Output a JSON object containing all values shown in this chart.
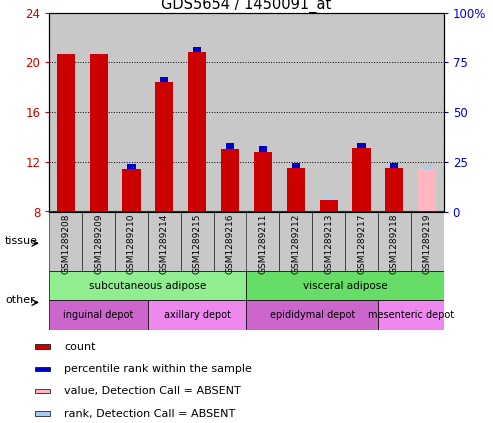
{
  "title": "GDS5654 / 1450091_at",
  "samples": [
    "GSM1289208",
    "GSM1289209",
    "GSM1289210",
    "GSM1289214",
    "GSM1289215",
    "GSM1289216",
    "GSM1289211",
    "GSM1289212",
    "GSM1289213",
    "GSM1289217",
    "GSM1289218",
    "GSM1289219"
  ],
  "red_tops": [
    20.7,
    20.7,
    11.4,
    18.4,
    20.8,
    13.0,
    12.8,
    11.5,
    8.9,
    13.1,
    11.5,
    0.0
  ],
  "blue_extra": [
    0.0,
    0.0,
    0.4,
    0.4,
    0.4,
    0.5,
    0.5,
    0.4,
    0.0,
    0.4,
    0.4,
    0.0
  ],
  "pink_tops": [
    0.0,
    0.0,
    0.0,
    0.0,
    0.0,
    0.0,
    0.0,
    0.0,
    0.0,
    0.0,
    0.0,
    11.4
  ],
  "lblue_extra": [
    0.0,
    0.0,
    0.0,
    0.0,
    0.0,
    0.0,
    0.0,
    0.0,
    0.4,
    0.0,
    0.0,
    0.3
  ],
  "bar_bottom": 8,
  "ylim_left": [
    8,
    24
  ],
  "ylim_right": [
    0,
    100
  ],
  "yticks_left": [
    8,
    12,
    16,
    20,
    24
  ],
  "yticks_right": [
    0,
    25,
    50,
    75,
    100
  ],
  "ytick_labels_left": [
    "8",
    "12",
    "16",
    "20",
    "24"
  ],
  "ytick_labels_right": [
    "0",
    "25",
    "50",
    "75",
    "100%"
  ],
  "grid_values": [
    12,
    16,
    20
  ],
  "tissue_groups": [
    {
      "label": "subcutaneous adipose",
      "start": 0,
      "end": 5,
      "color": "#90ee90"
    },
    {
      "label": "visceral adipose",
      "start": 6,
      "end": 11,
      "color": "#66dd66"
    }
  ],
  "other_groups": [
    {
      "label": "inguinal depot",
      "start": 0,
      "end": 2,
      "color": "#cc66cc"
    },
    {
      "label": "axillary depot",
      "start": 3,
      "end": 5,
      "color": "#ee88ee"
    },
    {
      "label": "epididymal depot",
      "start": 6,
      "end": 9,
      "color": "#cc66cc"
    },
    {
      "label": "mesenteric depot",
      "start": 10,
      "end": 11,
      "color": "#ee88ee"
    }
  ],
  "legend_items": [
    {
      "color": "#cc0000",
      "label": "count"
    },
    {
      "color": "#0000cc",
      "label": "percentile rank within the sample"
    },
    {
      "color": "#ffb6c1",
      "label": "value, Detection Call = ABSENT"
    },
    {
      "color": "#aaccee",
      "label": "rank, Detection Call = ABSENT"
    }
  ],
  "bar_width": 0.55,
  "left_axis_color": "#cc0000",
  "right_axis_color": "#0000cc",
  "grey_col": "#c8c8c8"
}
